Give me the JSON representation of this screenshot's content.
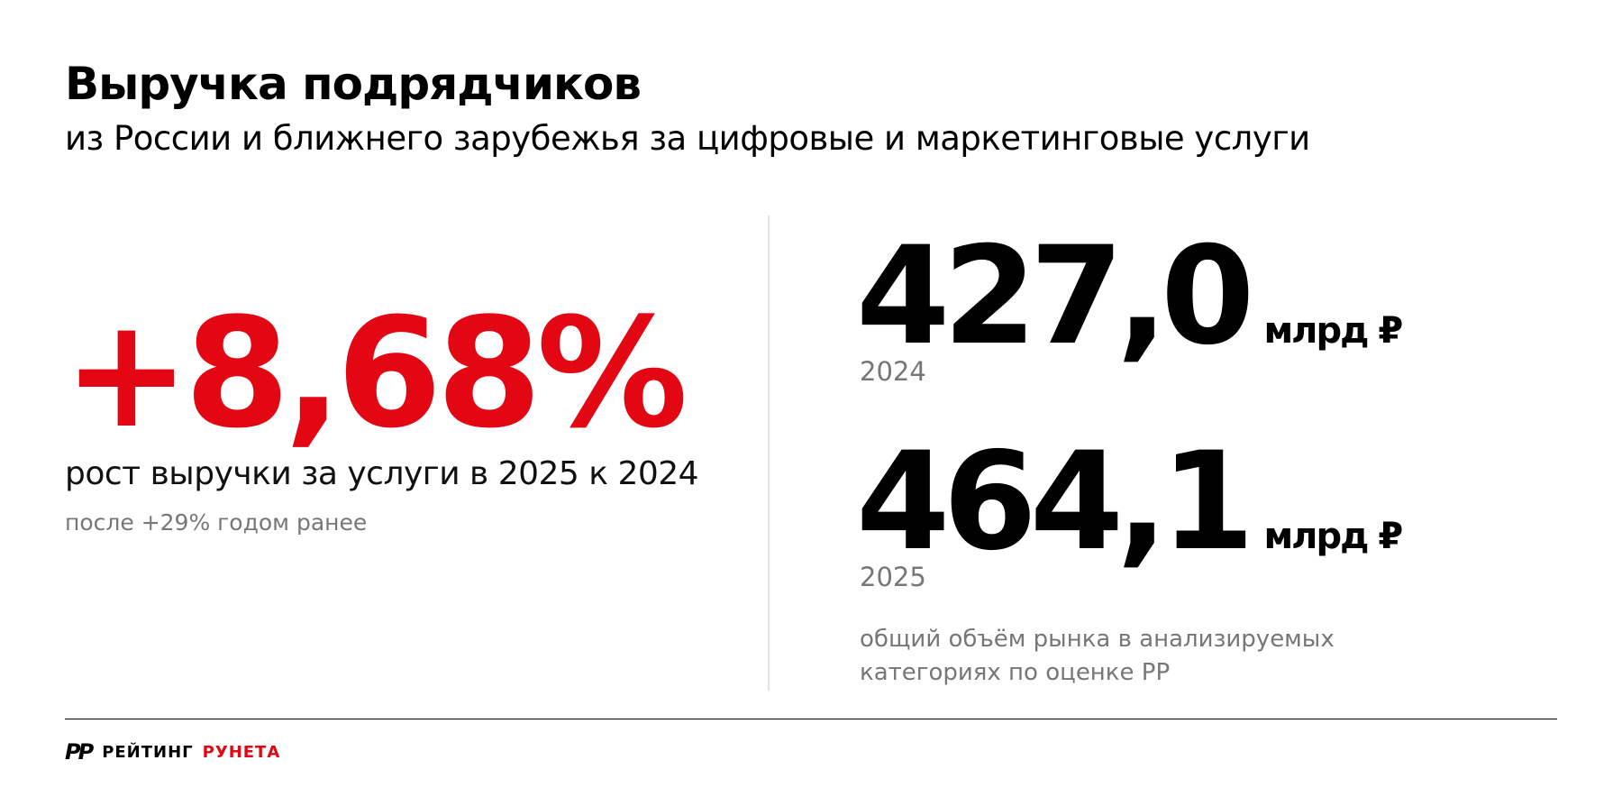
{
  "header": {
    "title": "Выручка подрядчиков",
    "subtitle": "из России и ближнего зарубежья за цифровые и маркетинговые услуги"
  },
  "growth": {
    "value": "+8,68%",
    "label": "рост выручки за услуги в 2025 к 2024",
    "note": "после +29% годом ранее"
  },
  "stats": [
    {
      "value": "427,0",
      "unit": "млрд ₽",
      "year": "2024"
    },
    {
      "value": "464,1",
      "unit": "млрд ₽",
      "year": "2025"
    }
  ],
  "stats_note": [
    "общий объём рынка в анализируемых",
    "категориях по оценке РР"
  ],
  "footer": {
    "logo_mark": "РР",
    "brand_left": "РЕЙТИНГ",
    "brand_right": "РУНЕТА"
  }
}
